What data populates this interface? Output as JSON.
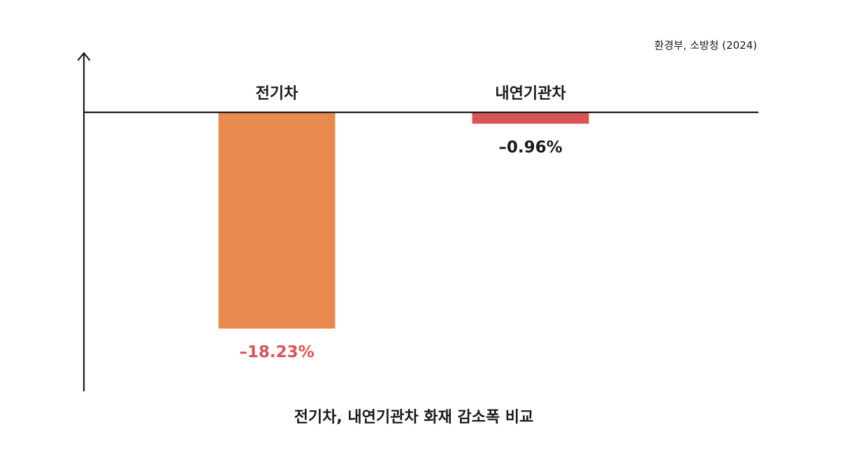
{
  "source": "환경부, 소방청 (2024)",
  "chart_data": {
    "type": "bar",
    "title": "전기차, 내연기관차 화재 감소폭 비교",
    "categories": [
      "전기차",
      "내연기관차"
    ],
    "values": [
      -18.23,
      -0.96
    ],
    "value_labels": [
      "–18.23%",
      "–0.96%"
    ],
    "colors": [
      "#E88A50",
      "#D95456"
    ],
    "value_label_colors": [
      "#D95456",
      "#1a1a1a"
    ],
    "xlabel": "",
    "ylabel": "",
    "ylim": [
      -18.23,
      0
    ],
    "grid": false,
    "legend": "none"
  }
}
